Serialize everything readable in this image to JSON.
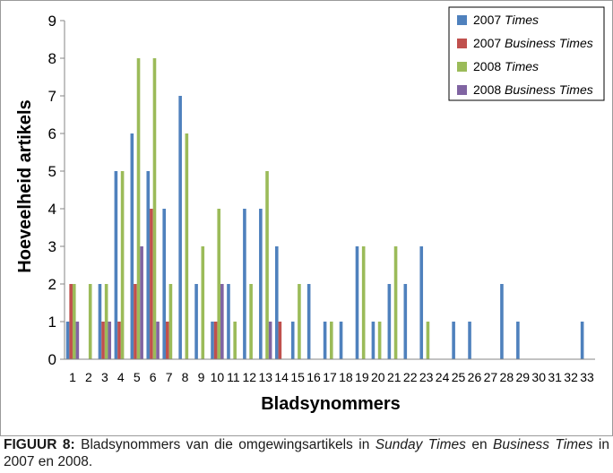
{
  "chart_data": {
    "type": "bar",
    "xlabel": "Bladsynommers",
    "ylabel": "Hoeveelheid artikels",
    "ylim": [
      0,
      9
    ],
    "yticks": [
      0,
      1,
      2,
      3,
      4,
      5,
      6,
      7,
      8,
      9
    ],
    "grid": false,
    "legend_position": "top-right",
    "categories": [
      "1",
      "2",
      "3",
      "4",
      "5",
      "6",
      "7",
      "8",
      "9",
      "10",
      "11",
      "12",
      "13",
      "14",
      "15",
      "16",
      "17",
      "18",
      "19",
      "20",
      "21",
      "22",
      "23",
      "24",
      "25",
      "26",
      "27",
      "28",
      "29",
      "30",
      "31",
      "32",
      "33"
    ],
    "series": [
      {
        "name": "2007",
        "name_italic": "Times",
        "color": "#4f81bd",
        "values": [
          1,
          0,
          2,
          5,
          6,
          5,
          4,
          7,
          2,
          1,
          2,
          4,
          4,
          3,
          1,
          2,
          1,
          1,
          3,
          1,
          2,
          2,
          3,
          0,
          1,
          1,
          0,
          2,
          1,
          0,
          0,
          0,
          1
        ]
      },
      {
        "name": "2007",
        "name_italic": "Business Times",
        "color": "#c0504d",
        "values": [
          2,
          0,
          1,
          1,
          2,
          4,
          1,
          0,
          0,
          1,
          0,
          0,
          0,
          1,
          0,
          0,
          0,
          0,
          0,
          0,
          0,
          0,
          0,
          0,
          0,
          0,
          0,
          0,
          0,
          0,
          0,
          0,
          0
        ]
      },
      {
        "name": "2008",
        "name_italic": "Times",
        "color": "#9bbb59",
        "values": [
          2,
          2,
          2,
          5,
          8,
          8,
          2,
          6,
          3,
          4,
          1,
          2,
          5,
          0,
          2,
          0,
          1,
          0,
          3,
          1,
          3,
          0,
          1,
          0,
          0,
          0,
          0,
          0,
          0,
          0,
          0,
          0,
          0
        ]
      },
      {
        "name": "2008",
        "name_italic": "Business Times",
        "color": "#8064a2",
        "values": [
          1,
          0,
          1,
          0,
          3,
          1,
          0,
          0,
          0,
          2,
          0,
          0,
          1,
          0,
          0,
          0,
          0,
          0,
          0,
          0,
          0,
          0,
          0,
          0,
          0,
          0,
          0,
          0,
          0,
          0,
          0,
          0,
          0
        ]
      }
    ]
  },
  "caption": {
    "label": "FIGUUR 8:",
    "part1": " Bladsynommers van die omgewingsartikels in ",
    "italic1": "Sunday Times",
    "part2": " en ",
    "italic2": "Business Times",
    "part3": " in 2007 en 2008."
  }
}
